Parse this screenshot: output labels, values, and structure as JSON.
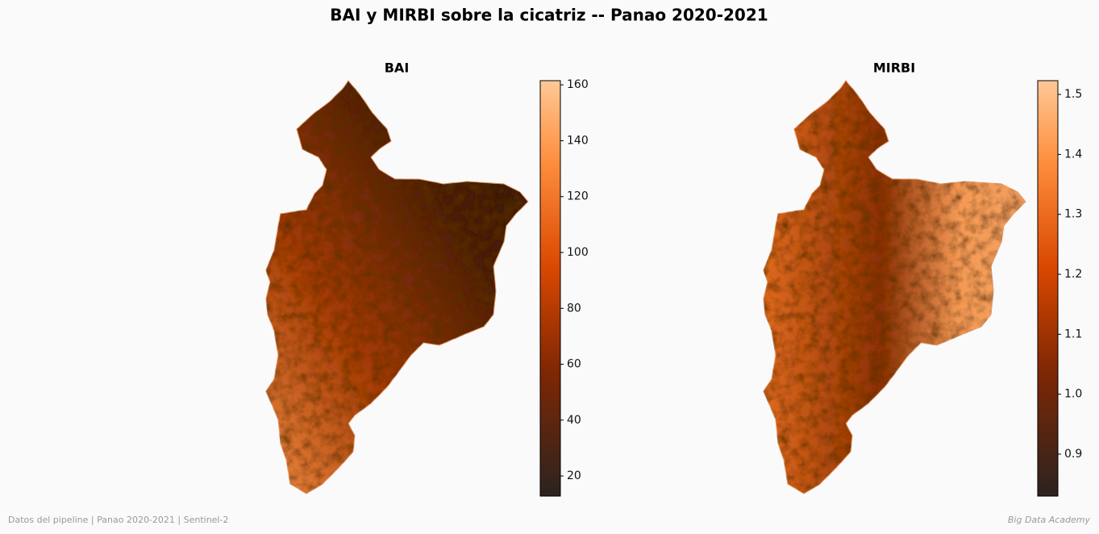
{
  "title": "BAI y MIRBI sobre la cicatriz -- Panao 2020-2021",
  "panels": [
    {
      "title": "BAI",
      "clim": [
        12.8,
        161.5
      ],
      "ticks": [
        20,
        40,
        60,
        80,
        100,
        120,
        140,
        160
      ]
    },
    {
      "title": "MIRBI",
      "clim": [
        0.83,
        1.523
      ],
      "ticks": [
        0.9,
        {
          "value": 1,
          "label": "1.0"
        },
        1.1,
        1.2,
        1.3,
        1.4,
        1.5
      ]
    }
  ],
  "footer": {
    "left": "Datos del pipeline | Panao 2020-2021 | Sentinel-2",
    "right": "Big Data Academy"
  }
}
